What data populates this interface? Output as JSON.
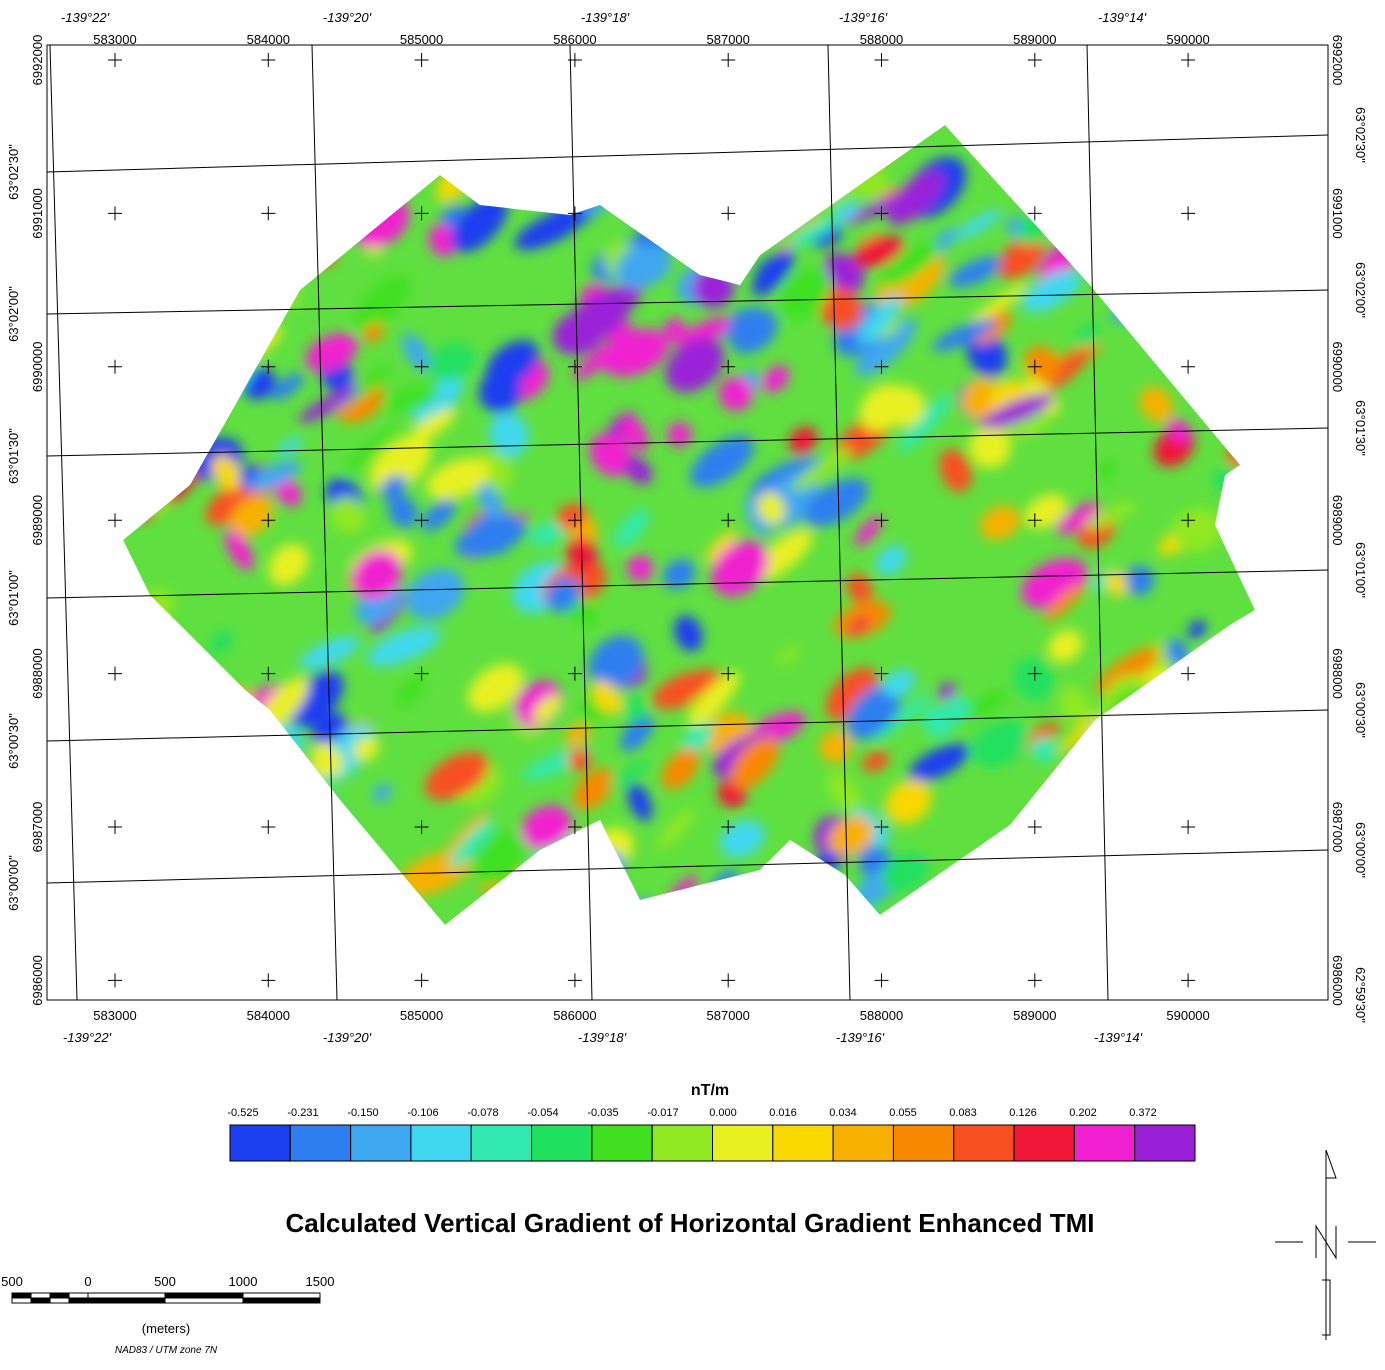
{
  "map": {
    "title": "Calculated Vertical Gradient of Horizontal Gradient Enhanced TMI",
    "easting_labels": [
      583000,
      584000,
      585000,
      586000,
      587000,
      588000,
      589000,
      590000
    ],
    "northing_labels": [
      6992000,
      6991000,
      6990000,
      6989000,
      6988000,
      6987000,
      6986000
    ],
    "longitude_labels": [
      "-139°22'",
      "-139°20'",
      "-139°18'",
      "-139°16'",
      "-139°14'"
    ],
    "latitude_labels_left": [
      "63°02'30\"",
      "63°02'00\"",
      "63°01'30\"",
      "63°01'00\"",
      "63°00'30\"",
      "63°00'00\""
    ],
    "latitude_labels_right": [
      "63°02'30\"",
      "63°02'00\"",
      "63°01'30\"",
      "63°01'00\"",
      "63°00'30\"",
      "63°00'00\"",
      "62°59'30\""
    ],
    "legend": {
      "unit": "nT/m",
      "labels": [
        "-0.525",
        "-0.231",
        "-0.150",
        "-0.106",
        "-0.078",
        "-0.054",
        "-0.035",
        "-0.017",
        "0.000",
        "0.016",
        "0.034",
        "0.055",
        "0.083",
        "0.126",
        "0.202",
        "0.372"
      ],
      "colors": [
        "#1a3ef0",
        "#2f7ef0",
        "#3fa6f0",
        "#40d8f0",
        "#30e8b0",
        "#20e060",
        "#40e020",
        "#90e820",
        "#e8f020",
        "#f8d800",
        "#f8b000",
        "#f88800",
        "#f85020",
        "#f01838",
        "#f020d0",
        "#9a20d8"
      ]
    },
    "scale_bar": {
      "labels": [
        "500",
        "0",
        "500",
        "1000",
        "1500"
      ],
      "unit": "(meters)",
      "projection": "NAD83 / UTM zone 7N"
    }
  }
}
